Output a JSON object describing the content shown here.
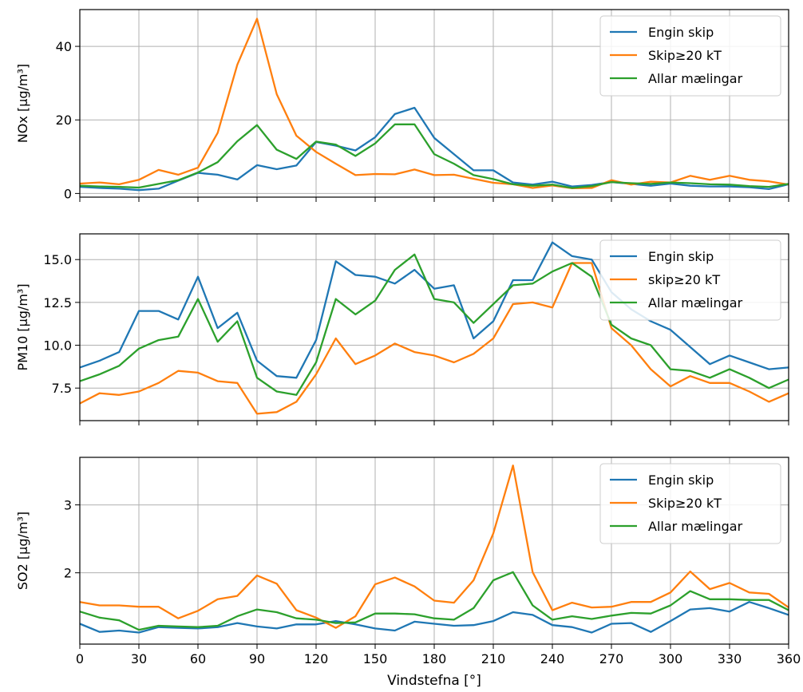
{
  "colors": {
    "engin_skip": "#1f77b4",
    "skip_20kt": "#ff7f0e",
    "allar": "#2ca02c",
    "grid": "#b0b0b0"
  },
  "xaxis": {
    "label": "Vindstefna [°]",
    "ticks": [
      0,
      30,
      60,
      90,
      120,
      150,
      180,
      210,
      240,
      270,
      300,
      330,
      360
    ],
    "lim": [
      0,
      360
    ]
  },
  "chart_data": [
    {
      "type": "line",
      "ylabel": "NOx [µg/m³]",
      "ylim": [
        -1,
        50
      ],
      "yticks": [
        0,
        20,
        40
      ],
      "ytick_labels": [
        "0",
        "20",
        "40"
      ],
      "grid": true,
      "legend_position": "upper right",
      "x": [
        0,
        10,
        20,
        30,
        40,
        50,
        60,
        70,
        80,
        90,
        100,
        110,
        120,
        130,
        140,
        150,
        160,
        170,
        180,
        190,
        200,
        210,
        220,
        230,
        240,
        250,
        260,
        270,
        280,
        290,
        300,
        310,
        320,
        330,
        340,
        350,
        360
      ],
      "series": [
        {
          "name": "Engin skip",
          "values": [
            1.8,
            1.5,
            1.3,
            0.9,
            1.3,
            3.5,
            5.6,
            5.1,
            3.8,
            7.7,
            6.6,
            7.6,
            14.0,
            13.0,
            11.7,
            15.3,
            21.6,
            23.3,
            15.1,
            10.7,
            6.3,
            6.3,
            3.0,
            2.4,
            3.2,
            1.9,
            2.3,
            3.1,
            2.6,
            2.1,
            2.7,
            2.1,
            1.9,
            1.9,
            1.7,
            1.2,
            2.5
          ]
        },
        {
          "name": "Skip≥20 kT",
          "values": [
            2.7,
            3.0,
            2.5,
            3.7,
            6.4,
            5.1,
            7.0,
            16.5,
            35.0,
            47.5,
            27.0,
            15.7,
            11.3,
            8.1,
            5.0,
            5.3,
            5.2,
            6.5,
            5.0,
            5.1,
            4.0,
            2.9,
            2.5,
            1.5,
            2.2,
            1.4,
            1.5,
            3.6,
            2.4,
            3.2,
            3.0,
            4.8,
            3.7,
            4.8,
            3.7,
            3.3,
            2.4
          ]
        },
        {
          "name": "Allar mælingar",
          "values": [
            2.1,
            1.9,
            1.8,
            1.6,
            2.6,
            3.6,
            5.7,
            8.5,
            14.2,
            18.6,
            11.9,
            9.4,
            14.1,
            13.3,
            10.2,
            13.6,
            18.8,
            18.8,
            10.7,
            8.1,
            5.0,
            3.9,
            2.5,
            2.1,
            2.4,
            1.5,
            2.0,
            3.1,
            2.8,
            2.6,
            3.0,
            2.8,
            2.5,
            2.4,
            2.0,
            1.8,
            2.6
          ]
        }
      ]
    },
    {
      "type": "line",
      "ylabel": "PM10 [µg/m³]",
      "ylim": [
        5.6,
        16.5
      ],
      "yticks": [
        7.5,
        10.0,
        12.5,
        15.0
      ],
      "ytick_labels": [
        "7.5",
        "10.0",
        "12.5",
        "15.0"
      ],
      "grid": true,
      "legend_position": "upper right",
      "x": [
        0,
        10,
        20,
        30,
        40,
        50,
        60,
        70,
        80,
        90,
        100,
        110,
        120,
        130,
        140,
        150,
        160,
        170,
        180,
        190,
        200,
        210,
        220,
        230,
        240,
        250,
        260,
        270,
        280,
        290,
        300,
        310,
        320,
        330,
        340,
        350,
        360
      ],
      "series": [
        {
          "name": "Engin skip",
          "values": [
            8.7,
            9.1,
            9.6,
            12.0,
            12.0,
            11.5,
            14.0,
            11.0,
            11.9,
            9.1,
            8.2,
            8.1,
            10.3,
            14.9,
            14.1,
            14.0,
            13.6,
            14.4,
            13.3,
            13.5,
            10.4,
            11.4,
            13.8,
            13.8,
            16.0,
            15.2,
            15.0,
            13.1,
            12.1,
            11.4,
            10.9,
            9.9,
            8.9,
            9.4,
            9.0,
            8.6,
            8.7
          ]
        },
        {
          "name": "skip≥20 kT",
          "values": [
            6.6,
            7.2,
            7.1,
            7.3,
            7.8,
            8.5,
            8.4,
            7.9,
            7.8,
            6.0,
            6.1,
            6.7,
            8.3,
            10.4,
            8.9,
            9.4,
            10.1,
            9.6,
            9.4,
            9.0,
            9.5,
            10.4,
            12.4,
            12.5,
            12.2,
            14.8,
            14.8,
            11.0,
            10.0,
            8.6,
            7.6,
            8.2,
            7.8,
            7.8,
            7.3,
            6.7,
            7.2
          ]
        },
        {
          "name": "Allar mælingar",
          "values": [
            7.9,
            8.3,
            8.8,
            9.8,
            10.3,
            10.5,
            12.7,
            10.2,
            11.4,
            8.1,
            7.3,
            7.1,
            9.0,
            12.7,
            11.8,
            12.6,
            14.4,
            15.3,
            12.7,
            12.5,
            11.3,
            12.4,
            13.5,
            13.6,
            14.3,
            14.8,
            14.0,
            11.2,
            10.4,
            10.0,
            8.6,
            8.5,
            8.1,
            8.6,
            8.1,
            7.5,
            8.0
          ]
        }
      ]
    },
    {
      "type": "line",
      "ylabel": "SO2 [µg/m³]",
      "ylim": [
        0.95,
        3.7
      ],
      "yticks": [
        2,
        3
      ],
      "ytick_labels": [
        "2",
        "3"
      ],
      "grid": true,
      "legend_position": "upper right",
      "x": [
        0,
        10,
        20,
        30,
        40,
        50,
        60,
        70,
        80,
        90,
        100,
        110,
        120,
        130,
        140,
        150,
        160,
        170,
        180,
        190,
        200,
        210,
        220,
        230,
        240,
        250,
        260,
        270,
        280,
        290,
        300,
        310,
        320,
        330,
        340,
        350,
        360
      ],
      "series": [
        {
          "name": "Engin skip",
          "values": [
            1.25,
            1.13,
            1.15,
            1.12,
            1.2,
            1.19,
            1.18,
            1.2,
            1.26,
            1.21,
            1.18,
            1.24,
            1.24,
            1.29,
            1.24,
            1.18,
            1.15,
            1.28,
            1.25,
            1.22,
            1.23,
            1.29,
            1.42,
            1.38,
            1.23,
            1.2,
            1.12,
            1.25,
            1.26,
            1.13,
            1.29,
            1.46,
            1.48,
            1.43,
            1.57,
            1.48,
            1.38
          ]
        },
        {
          "name": "Skip≥20 kT",
          "values": [
            1.57,
            1.52,
            1.52,
            1.5,
            1.5,
            1.33,
            1.44,
            1.61,
            1.66,
            1.96,
            1.84,
            1.45,
            1.34,
            1.19,
            1.36,
            1.83,
            1.93,
            1.8,
            1.59,
            1.56,
            1.89,
            2.58,
            3.58,
            2.01,
            1.45,
            1.56,
            1.49,
            1.5,
            1.57,
            1.57,
            1.71,
            2.02,
            1.76,
            1.85,
            1.71,
            1.69,
            1.49
          ]
        },
        {
          "name": "Allar mælingar",
          "values": [
            1.43,
            1.34,
            1.3,
            1.16,
            1.22,
            1.21,
            1.2,
            1.22,
            1.36,
            1.46,
            1.42,
            1.33,
            1.31,
            1.26,
            1.27,
            1.4,
            1.4,
            1.39,
            1.33,
            1.31,
            1.48,
            1.89,
            2.01,
            1.52,
            1.31,
            1.36,
            1.32,
            1.37,
            1.41,
            1.4,
            1.52,
            1.73,
            1.61,
            1.61,
            1.6,
            1.6,
            1.45
          ]
        }
      ]
    }
  ]
}
